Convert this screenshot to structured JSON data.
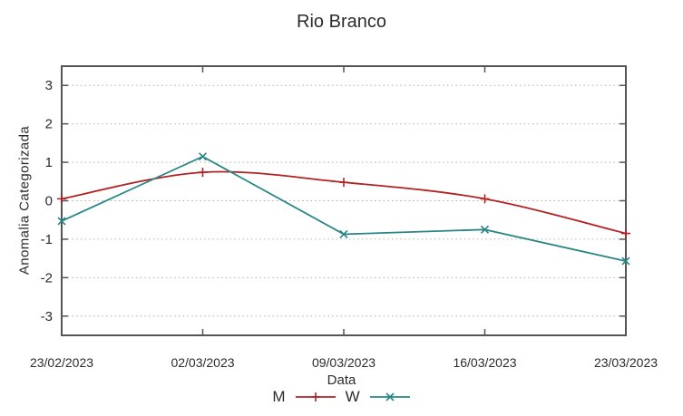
{
  "colors": {
    "background": "#ffffff",
    "axis": "#555555",
    "grid": "#b0b0b0",
    "text": "#2b2b2b"
  },
  "chart_data": {
    "type": "line",
    "title": "Rio Branco",
    "xlabel": "Data",
    "ylabel": "Anomalia Categorizada",
    "categories": [
      "23/02/2023",
      "02/03/2023",
      "09/03/2023",
      "16/03/2023",
      "23/03/2023"
    ],
    "series": [
      {
        "name": "M",
        "color": "#b22222",
        "marker": "plus",
        "smooth": true,
        "values": [
          0.05,
          0.74,
          0.48,
          0.05,
          -0.85
        ]
      },
      {
        "name": "W",
        "color": "#2a8686",
        "marker": "cross",
        "smooth": false,
        "values": [
          -0.53,
          1.15,
          -0.87,
          -0.75,
          -1.57
        ]
      }
    ],
    "ylim": [
      -3.5,
      3.5
    ],
    "yticks": [
      3,
      2,
      1,
      0,
      -1,
      -2,
      -3
    ],
    "grid": "horizontal-dotted",
    "legend_position": "bottom-center"
  }
}
